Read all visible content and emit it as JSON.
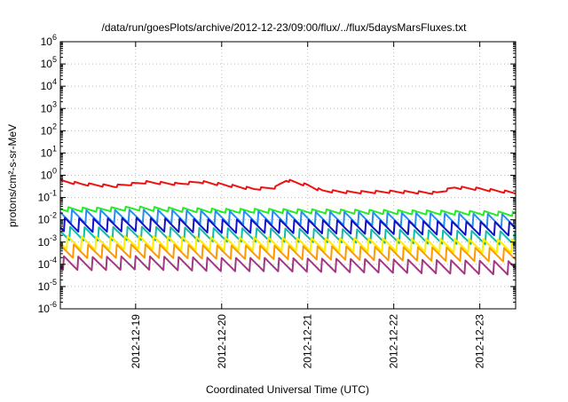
{
  "chart_data": {
    "type": "line",
    "title": "/data/run/goesPlots/archive/2012-12-23/09:00/flux/../flux/5daysMarsFluxes.txt",
    "xlabel": "Coordinated Universal Time (UTC)",
    "ylabel": "protons/cm²-s-sr-MeV",
    "x_start": "2012-12-18T03:00",
    "x_end": "2012-12-23T10:00",
    "xlim": [
      "2012-12-18T03:00",
      "2012-12-23T10:00"
    ],
    "ylim": [
      1e-06,
      1000000
    ],
    "yscale": "log",
    "grid": true,
    "x_ticks": [
      "2012-12-19",
      "2012-12-20",
      "2012-12-21",
      "2012-12-22",
      "2012-12-23"
    ],
    "y_ticks": [
      {
        "base": "10",
        "exp": "6"
      },
      {
        "base": "10",
        "exp": "5"
      },
      {
        "base": "10",
        "exp": "4"
      },
      {
        "base": "10",
        "exp": "3"
      },
      {
        "base": "10",
        "exp": "2"
      },
      {
        "base": "10",
        "exp": "1"
      },
      {
        "base": "10",
        "exp": "0"
      },
      {
        "base": "10",
        "exp": "-1"
      },
      {
        "base": "10",
        "exp": "-2"
      },
      {
        "base": "10",
        "exp": "-3"
      },
      {
        "base": "10",
        "exp": "-4"
      },
      {
        "base": "10",
        "exp": "-5"
      },
      {
        "base": "10",
        "exp": "-6"
      }
    ],
    "series": [
      {
        "color": "#ee1111",
        "values": [
          [
            "2012-12-18T03:00",
            0.55
          ],
          [
            "2012-12-18T09:00",
            0.4
          ],
          [
            "2012-12-18T18:00",
            0.32
          ],
          [
            "2012-12-19T03:00",
            0.48
          ],
          [
            "2012-12-19T12:00",
            0.4
          ],
          [
            "2012-12-19T18:00",
            0.5
          ],
          [
            "2012-12-20T00:00",
            0.38
          ],
          [
            "2012-12-20T09:00",
            0.24
          ],
          [
            "2012-12-20T15:00",
            0.28
          ],
          [
            "2012-12-20T18:00",
            0.6
          ],
          [
            "2012-12-21T00:00",
            0.35
          ],
          [
            "2012-12-21T04:00",
            0.2
          ],
          [
            "2012-12-21T12:00",
            0.17
          ],
          [
            "2012-12-22T00:00",
            0.18
          ],
          [
            "2012-12-22T12:00",
            0.16
          ],
          [
            "2012-12-22T17:00",
            0.28
          ],
          [
            "2012-12-23T00:00",
            0.24
          ],
          [
            "2012-12-23T10:00",
            0.16
          ]
        ]
      },
      {
        "color": "#22ee22",
        "values": [
          [
            "2012-12-18T03:00",
            0.03
          ],
          [
            "2012-12-18T12:00",
            0.028
          ],
          [
            "2012-12-19T00:00",
            0.032
          ],
          [
            "2012-12-19T12:00",
            0.028
          ],
          [
            "2012-12-20T00:00",
            0.025
          ],
          [
            "2012-12-20T12:00",
            0.025
          ],
          [
            "2012-12-21T00:00",
            0.024
          ],
          [
            "2012-12-21T12:00",
            0.023
          ],
          [
            "2012-12-22T00:00",
            0.022
          ],
          [
            "2012-12-22T12:00",
            0.021
          ],
          [
            "2012-12-23T00:00",
            0.02
          ],
          [
            "2012-12-23T10:00",
            0.018
          ]
        ]
      },
      {
        "color": "#2a8cf0",
        "values": [
          [
            "2012-12-18T03:00",
            0.014
          ],
          [
            "2012-12-18T12:00",
            0.013
          ],
          [
            "2012-12-19T00:00",
            0.014
          ],
          [
            "2012-12-19T12:00",
            0.013
          ],
          [
            "2012-12-20T00:00",
            0.012
          ],
          [
            "2012-12-20T12:00",
            0.012
          ],
          [
            "2012-12-21T00:00",
            0.011
          ],
          [
            "2012-12-21T12:00",
            0.011
          ],
          [
            "2012-12-22T00:00",
            0.01
          ],
          [
            "2012-12-22T12:00",
            0.0095
          ],
          [
            "2012-12-23T00:00",
            0.009
          ],
          [
            "2012-12-23T10:00",
            0.0085
          ]
        ]
      },
      {
        "color": "#1111cc",
        "values": [
          [
            "2012-12-18T03:00",
            0.006
          ],
          [
            "2012-12-18T12:00",
            0.0055
          ],
          [
            "2012-12-19T00:00",
            0.006
          ],
          [
            "2012-12-19T12:00",
            0.0055
          ],
          [
            "2012-12-20T00:00",
            0.005
          ],
          [
            "2012-12-20T12:00",
            0.005
          ],
          [
            "2012-12-21T00:00",
            0.0048
          ],
          [
            "2012-12-21T12:00",
            0.0046
          ],
          [
            "2012-12-22T00:00",
            0.0044
          ],
          [
            "2012-12-22T12:00",
            0.0042
          ],
          [
            "2012-12-23T00:00",
            0.004
          ],
          [
            "2012-12-23T10:00",
            0.0038
          ]
        ]
      },
      {
        "color": "#11bbaa",
        "values": [
          [
            "2012-12-18T03:00",
            0.0025
          ],
          [
            "2012-12-18T12:00",
            0.0023
          ],
          [
            "2012-12-19T00:00",
            0.0025
          ],
          [
            "2012-12-19T12:00",
            0.0023
          ],
          [
            "2012-12-20T00:00",
            0.0021
          ],
          [
            "2012-12-20T12:00",
            0.0021
          ],
          [
            "2012-12-21T00:00",
            0.002
          ],
          [
            "2012-12-21T12:00",
            0.0019
          ],
          [
            "2012-12-22T00:00",
            0.0018
          ],
          [
            "2012-12-22T12:00",
            0.0017
          ],
          [
            "2012-12-23T00:00",
            0.0016
          ],
          [
            "2012-12-23T10:00",
            0.0015
          ]
        ]
      },
      {
        "color": "#ffee00",
        "values": [
          [
            "2012-12-18T03:00",
            0.001
          ],
          [
            "2012-12-18T12:00",
            0.0009
          ],
          [
            "2012-12-19T00:00",
            0.001
          ],
          [
            "2012-12-19T12:00",
            0.0009
          ],
          [
            "2012-12-20T00:00",
            0.00085
          ],
          [
            "2012-12-20T12:00",
            0.00085
          ],
          [
            "2012-12-21T00:00",
            0.0008
          ],
          [
            "2012-12-21T12:00",
            0.00078
          ],
          [
            "2012-12-22T00:00",
            0.00075
          ],
          [
            "2012-12-22T12:00",
            0.00072
          ],
          [
            "2012-12-23T00:00",
            0.0007
          ],
          [
            "2012-12-23T10:00",
            0.00068
          ]
        ]
      },
      {
        "color": "#ff9900",
        "values": [
          [
            "2012-12-18T03:00",
            0.0004
          ],
          [
            "2012-12-18T12:00",
            0.00038
          ],
          [
            "2012-12-19T00:00",
            0.0004
          ],
          [
            "2012-12-19T12:00",
            0.00038
          ],
          [
            "2012-12-20T00:00",
            0.00035
          ],
          [
            "2012-12-20T12:00",
            0.00035
          ],
          [
            "2012-12-21T00:00",
            0.00033
          ],
          [
            "2012-12-21T12:00",
            0.00032
          ],
          [
            "2012-12-22T00:00",
            0.0003
          ],
          [
            "2012-12-22T12:00",
            0.00029
          ],
          [
            "2012-12-23T00:00",
            0.00028
          ],
          [
            "2012-12-23T10:00",
            0.00027
          ]
        ]
      },
      {
        "color": "#a03a80",
        "values": [
          [
            "2012-12-18T03:00",
            0.00012
          ],
          [
            "2012-12-18T12:00",
            0.00011
          ],
          [
            "2012-12-19T00:00",
            0.00012
          ],
          [
            "2012-12-19T12:00",
            0.00011
          ],
          [
            "2012-12-20T00:00",
            0.0001
          ],
          [
            "2012-12-20T12:00",
            0.0001
          ],
          [
            "2012-12-21T00:00",
            9.5e-05
          ],
          [
            "2012-12-21T12:00",
            9e-05
          ],
          [
            "2012-12-22T00:00",
            8.5e-05
          ],
          [
            "2012-12-22T12:00",
            8e-05
          ],
          [
            "2012-12-23T00:00",
            7.5e-05
          ],
          [
            "2012-12-23T10:00",
            7e-05
          ]
        ]
      }
    ]
  }
}
